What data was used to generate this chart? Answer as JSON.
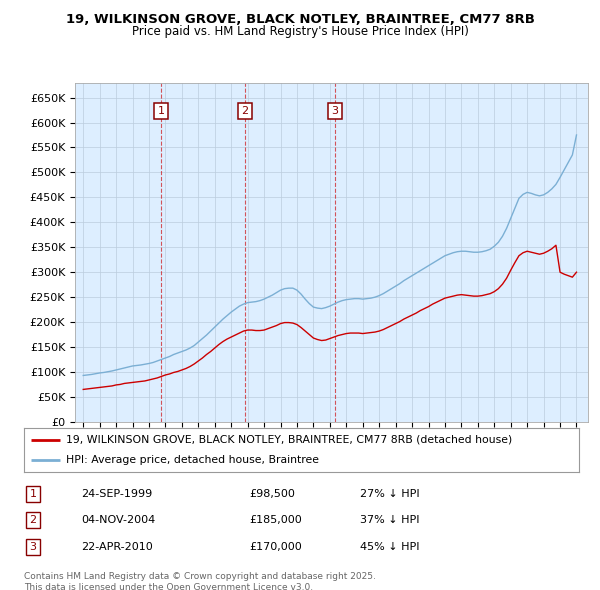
{
  "title1": "19, WILKINSON GROVE, BLACK NOTLEY, BRAINTREE, CM77 8RB",
  "title2": "Price paid vs. HM Land Registry's House Price Index (HPI)",
  "ylim": [
    0,
    680000
  ],
  "yticks": [
    0,
    50000,
    100000,
    150000,
    200000,
    250000,
    300000,
    350000,
    400000,
    450000,
    500000,
    550000,
    600000,
    650000
  ],
  "ytick_labels": [
    "£0",
    "£50K",
    "£100K",
    "£150K",
    "£200K",
    "£250K",
    "£300K",
    "£350K",
    "£400K",
    "£450K",
    "£500K",
    "£550K",
    "£600K",
    "£650K"
  ],
  "sale_years": [
    1999.73,
    2004.84,
    2010.3
  ],
  "sale_labels": [
    "1",
    "2",
    "3"
  ],
  "sale_info": [
    {
      "num": "1",
      "date": "24-SEP-1999",
      "price": "£98,500",
      "hpi": "27% ↓ HPI"
    },
    {
      "num": "2",
      "date": "04-NOV-2004",
      "price": "£185,000",
      "hpi": "37% ↓ HPI"
    },
    {
      "num": "3",
      "date": "22-APR-2010",
      "price": "£170,000",
      "hpi": "45% ↓ HPI"
    }
  ],
  "legend_line1": "19, WILKINSON GROVE, BLACK NOTLEY, BRAINTREE, CM77 8RB (detached house)",
  "legend_line2": "HPI: Average price, detached house, Braintree",
  "footer": "Contains HM Land Registry data © Crown copyright and database right 2025.\nThis data is licensed under the Open Government Licence v3.0.",
  "line_color_red": "#cc0000",
  "line_color_blue": "#7bafd4",
  "background_color": "#ddeeff",
  "grid_color": "#bbccdd",
  "hpi_years": [
    1995.0,
    1995.25,
    1995.5,
    1995.75,
    1996.0,
    1996.25,
    1996.5,
    1996.75,
    1997.0,
    1997.25,
    1997.5,
    1997.75,
    1998.0,
    1998.25,
    1998.5,
    1998.75,
    1999.0,
    1999.25,
    1999.5,
    1999.75,
    2000.0,
    2000.25,
    2000.5,
    2000.75,
    2001.0,
    2001.25,
    2001.5,
    2001.75,
    2002.0,
    2002.25,
    2002.5,
    2002.75,
    2003.0,
    2003.25,
    2003.5,
    2003.75,
    2004.0,
    2004.25,
    2004.5,
    2004.75,
    2005.0,
    2005.25,
    2005.5,
    2005.75,
    2006.0,
    2006.25,
    2006.5,
    2006.75,
    2007.0,
    2007.25,
    2007.5,
    2007.75,
    2008.0,
    2008.25,
    2008.5,
    2008.75,
    2009.0,
    2009.25,
    2009.5,
    2009.75,
    2010.0,
    2010.25,
    2010.5,
    2010.75,
    2011.0,
    2011.25,
    2011.5,
    2011.75,
    2012.0,
    2012.25,
    2012.5,
    2012.75,
    2013.0,
    2013.25,
    2013.5,
    2013.75,
    2014.0,
    2014.25,
    2014.5,
    2014.75,
    2015.0,
    2015.25,
    2015.5,
    2015.75,
    2016.0,
    2016.25,
    2016.5,
    2016.75,
    2017.0,
    2017.25,
    2017.5,
    2017.75,
    2018.0,
    2018.25,
    2018.5,
    2018.75,
    2019.0,
    2019.25,
    2019.5,
    2019.75,
    2020.0,
    2020.25,
    2020.5,
    2020.75,
    2021.0,
    2021.25,
    2021.5,
    2021.75,
    2022.0,
    2022.25,
    2022.5,
    2022.75,
    2023.0,
    2023.25,
    2023.5,
    2023.75,
    2024.0,
    2024.25,
    2024.5,
    2024.75,
    2025.0
  ],
  "hpi_values": [
    93000,
    94000,
    95000,
    96500,
    98000,
    99000,
    100500,
    102000,
    104000,
    106000,
    108000,
    110000,
    112000,
    113000,
    114000,
    115500,
    117000,
    119000,
    122000,
    125000,
    128000,
    131000,
    135000,
    138000,
    141000,
    144000,
    148000,
    153000,
    160000,
    167000,
    174000,
    182000,
    190000,
    198000,
    206000,
    213000,
    220000,
    226000,
    232000,
    236000,
    239000,
    240000,
    241000,
    243000,
    246000,
    250000,
    254000,
    259000,
    264000,
    267000,
    268000,
    268000,
    264000,
    256000,
    246000,
    237000,
    230000,
    228000,
    227000,
    229000,
    232000,
    236000,
    240000,
    243000,
    245000,
    246000,
    247000,
    247000,
    246000,
    247000,
    248000,
    250000,
    253000,
    257000,
    262000,
    267000,
    272000,
    277000,
    283000,
    288000,
    293000,
    298000,
    303000,
    308000,
    313000,
    318000,
    323000,
    328000,
    333000,
    336000,
    339000,
    341000,
    342000,
    342000,
    341000,
    340000,
    340000,
    341000,
    343000,
    346000,
    352000,
    360000,
    372000,
    388000,
    408000,
    428000,
    448000,
    456000,
    460000,
    458000,
    455000,
    453000,
    455000,
    460000,
    467000,
    476000,
    490000,
    505000,
    520000,
    535000,
    575000
  ],
  "red_years": [
    1995.0,
    1995.25,
    1995.5,
    1995.75,
    1996.0,
    1996.25,
    1996.5,
    1996.75,
    1997.0,
    1997.25,
    1997.5,
    1997.75,
    1998.0,
    1998.25,
    1998.5,
    1998.75,
    1999.0,
    1999.25,
    1999.5,
    1999.75,
    2000.0,
    2000.25,
    2000.5,
    2000.75,
    2001.0,
    2001.25,
    2001.5,
    2001.75,
    2002.0,
    2002.25,
    2002.5,
    2002.75,
    2003.0,
    2003.25,
    2003.5,
    2003.75,
    2004.0,
    2004.25,
    2004.5,
    2004.75,
    2005.0,
    2005.25,
    2005.5,
    2005.75,
    2006.0,
    2006.25,
    2006.5,
    2006.75,
    2007.0,
    2007.25,
    2007.5,
    2007.75,
    2008.0,
    2008.25,
    2008.5,
    2008.75,
    2009.0,
    2009.25,
    2009.5,
    2009.75,
    2010.0,
    2010.25,
    2010.5,
    2010.75,
    2011.0,
    2011.25,
    2011.5,
    2011.75,
    2012.0,
    2012.25,
    2012.5,
    2012.75,
    2013.0,
    2013.25,
    2013.5,
    2013.75,
    2014.0,
    2014.25,
    2014.5,
    2014.75,
    2015.0,
    2015.25,
    2015.5,
    2015.75,
    2016.0,
    2016.25,
    2016.5,
    2016.75,
    2017.0,
    2017.25,
    2017.5,
    2017.75,
    2018.0,
    2018.25,
    2018.5,
    2018.75,
    2019.0,
    2019.25,
    2019.5,
    2019.75,
    2020.0,
    2020.25,
    2020.5,
    2020.75,
    2021.0,
    2021.25,
    2021.5,
    2021.75,
    2022.0,
    2022.25,
    2022.5,
    2022.75,
    2023.0,
    2023.25,
    2023.5,
    2023.75,
    2024.0,
    2024.25,
    2024.5,
    2024.75,
    2025.0
  ],
  "red_values": [
    65000,
    66000,
    67000,
    68000,
    69000,
    70000,
    71000,
    72000,
    74000,
    75000,
    77000,
    78000,
    79000,
    80000,
    81000,
    82000,
    84000,
    86000,
    88000,
    91000,
    94000,
    96000,
    99000,
    101000,
    104000,
    107000,
    111000,
    116000,
    122000,
    128000,
    135000,
    141000,
    148000,
    155000,
    161000,
    166000,
    170000,
    174000,
    178000,
    182000,
    184000,
    184000,
    183000,
    183000,
    184000,
    187000,
    190000,
    193000,
    197000,
    199000,
    199000,
    198000,
    195000,
    189000,
    182000,
    175000,
    168000,
    165000,
    163000,
    164000,
    167000,
    170000,
    173000,
    175000,
    177000,
    178000,
    178000,
    178000,
    177000,
    178000,
    179000,
    180000,
    182000,
    185000,
    189000,
    193000,
    197000,
    201000,
    206000,
    210000,
    214000,
    218000,
    223000,
    227000,
    231000,
    236000,
    240000,
    244000,
    248000,
    250000,
    252000,
    254000,
    255000,
    254000,
    253000,
    252000,
    252000,
    253000,
    255000,
    257000,
    261000,
    267000,
    276000,
    288000,
    304000,
    319000,
    333000,
    339000,
    342000,
    340000,
    338000,
    336000,
    338000,
    342000,
    347000,
    354000,
    300000,
    296000,
    293000,
    290000,
    300000
  ]
}
